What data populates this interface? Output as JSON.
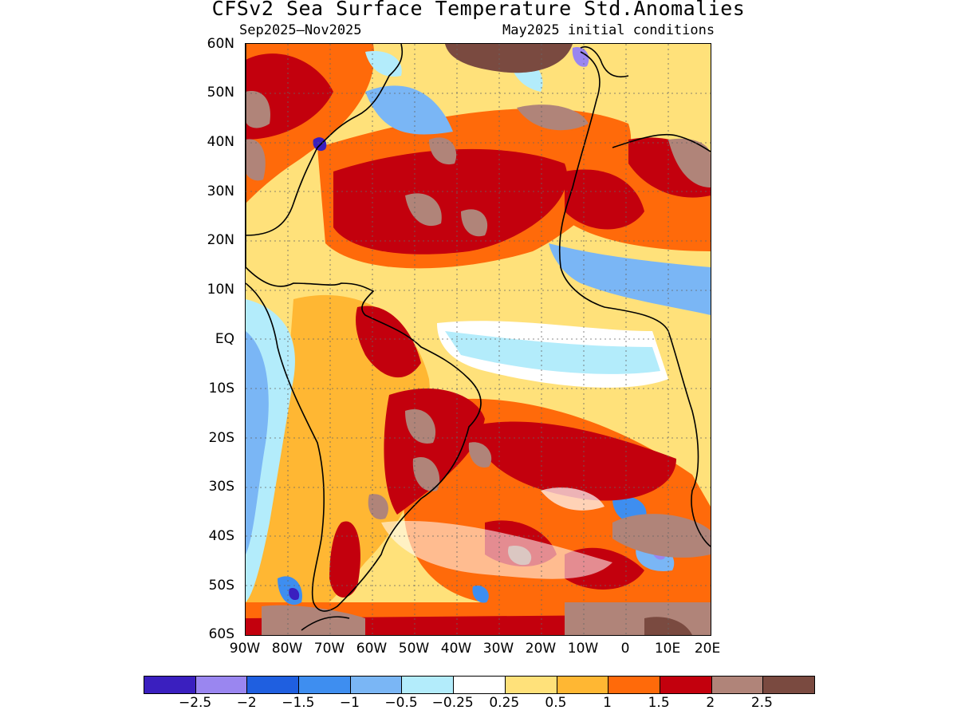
{
  "title": "CFSv2 Sea Surface Temperature Std.Anomalies",
  "subtitle_left": "Sep2025–Nov2025",
  "subtitle_right": "May2025 initial conditions",
  "lat_labels": [
    "60N",
    "50N",
    "40N",
    "30N",
    "20N",
    "10N",
    "EQ",
    "10S",
    "20S",
    "30S",
    "40S",
    "50S",
    "60S"
  ],
  "lon_labels": [
    "90W",
    "80W",
    "70W",
    "60W",
    "50W",
    "40W",
    "30W",
    "20W",
    "10W",
    "0",
    "10E",
    "20E"
  ],
  "legend": {
    "colors": [
      "#3a1fbf",
      "#9a86f0",
      "#1f5fe0",
      "#3e8ef0",
      "#7ab6f5",
      "#b3ecfb",
      "#ffffff",
      "#ffe17a",
      "#ffb733",
      "#ff6a0a",
      "#c3000d",
      "#b08479",
      "#7a4a40"
    ],
    "labels": [
      "−2.5",
      "−2",
      "−1.5",
      "−1",
      "−0.5",
      "−0.25",
      "0.25",
      "0.5",
      "1",
      "1.5",
      "2",
      "2.5"
    ]
  }
}
